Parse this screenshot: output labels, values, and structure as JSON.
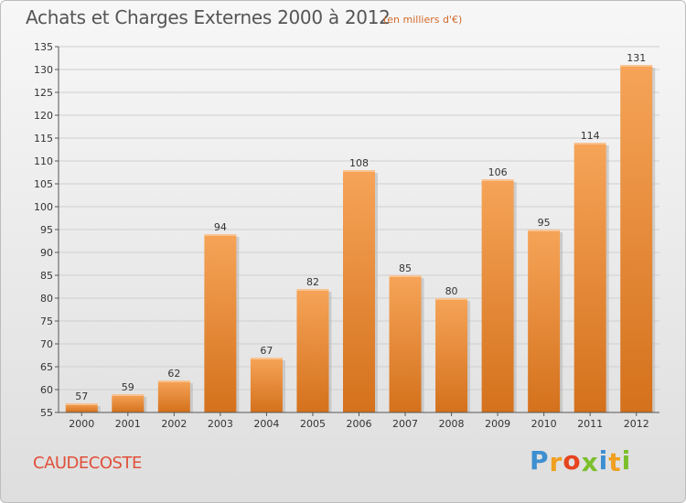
{
  "header": {
    "title": "Achats et Charges Externes 2000 à 2012",
    "unit": "(en milliers d'€)"
  },
  "commune": "CAUDECOSTE",
  "logo": {
    "letters": [
      "P",
      "r",
      "o",
      "x",
      "i",
      "t",
      "i"
    ],
    "colors": [
      "#3d8fd1",
      "#f0a020",
      "#e6441e",
      "#7cbf2c",
      "#3d8fd1",
      "#f0a020",
      "#7cbf2c"
    ]
  },
  "colors": {
    "bar_top": "#f6a458",
    "bar_bottom": "#d4711c",
    "title": "#555555",
    "commune": "#e0503a",
    "subtitle": "#d36a2a"
  },
  "chart_data": {
    "type": "bar",
    "categories": [
      "2000",
      "2001",
      "2002",
      "2003",
      "2004",
      "2005",
      "2006",
      "2007",
      "2008",
      "2009",
      "2010",
      "2011",
      "2012"
    ],
    "values": [
      57,
      59,
      62,
      94,
      67,
      82,
      108,
      85,
      80,
      106,
      95,
      114,
      131
    ],
    "ylim": [
      55,
      135
    ],
    "yticks": [
      55,
      60,
      65,
      70,
      75,
      80,
      85,
      90,
      95,
      100,
      105,
      110,
      115,
      120,
      125,
      130,
      135
    ],
    "grid": true,
    "data_labels": true
  }
}
